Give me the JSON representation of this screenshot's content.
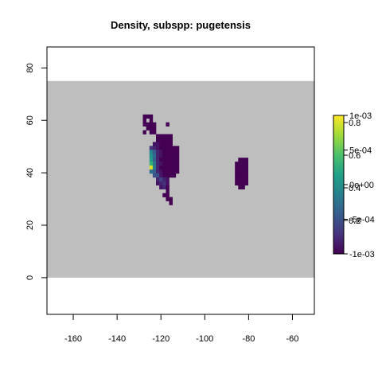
{
  "chart_data": {
    "type": "heatmap",
    "title": "Density, subspp: pugetensis",
    "xlabel": "",
    "ylabel": "",
    "xlim": [
      -172,
      -50
    ],
    "ylim": [
      -14,
      88
    ],
    "x_ticks": [
      -160,
      -140,
      -120,
      -100,
      -80,
      -60
    ],
    "y_ticks": [
      0,
      20,
      40,
      60,
      80
    ],
    "x_tick_labels": [
      "-160",
      "-140",
      "-120",
      "-100",
      "-80",
      "-60"
    ],
    "y_tick_labels": [
      "0",
      "20",
      "40",
      "60",
      "80"
    ],
    "cell_size": 1.5,
    "background_region": {
      "lon": [
        -172,
        -50
      ],
      "lat": [
        0,
        75
      ],
      "color": "#bebebe"
    },
    "colorbar": {
      "labels_right": [
        "1e-03",
        "5e-04",
        "0e+00",
        "-5e-04",
        "-1e-03"
      ],
      "labels_overlay": [
        "0.8",
        "0.6",
        "0.4",
        "0.2"
      ],
      "colors": [
        "#440154",
        "#46337e",
        "#365c8d",
        "#277f8e",
        "#1fa187",
        "#4ac16d",
        "#a0da39",
        "#fde725"
      ]
    },
    "cells": [
      {
        "x": -127.5,
        "y": 61.5,
        "v": 0.0
      },
      {
        "x": -126.0,
        "y": 61.5,
        "v": 0.0
      },
      {
        "x": -124.5,
        "y": 61.5,
        "v": 0.0
      },
      {
        "x": -127.5,
        "y": 60.0,
        "v": 0.0
      },
      {
        "x": -124.5,
        "y": 60.0,
        "v": 0.0
      },
      {
        "x": -127.5,
        "y": 58.5,
        "v": 0.0
      },
      {
        "x": -126.0,
        "y": 58.5,
        "v": 0.0
      },
      {
        "x": -124.5,
        "y": 58.5,
        "v": 0.0
      },
      {
        "x": -123.0,
        "y": 58.5,
        "v": 0.0
      },
      {
        "x": -117.0,
        "y": 58.5,
        "v": 0.0
      },
      {
        "x": -126.0,
        "y": 57.0,
        "v": 0.0
      },
      {
        "x": -124.5,
        "y": 57.0,
        "v": 0.0
      },
      {
        "x": -123.0,
        "y": 57.0,
        "v": 0.0
      },
      {
        "x": -127.5,
        "y": 55.5,
        "v": 0.0
      },
      {
        "x": -124.5,
        "y": 55.5,
        "v": 0.0
      },
      {
        "x": -123.0,
        "y": 55.5,
        "v": 0.0
      },
      {
        "x": -121.5,
        "y": 54.0,
        "v": 0.0
      },
      {
        "x": -120.0,
        "y": 54.0,
        "v": 0.0
      },
      {
        "x": -118.5,
        "y": 54.0,
        "v": 0.0
      },
      {
        "x": -117.0,
        "y": 54.0,
        "v": 0.0
      },
      {
        "x": -115.5,
        "y": 54.0,
        "v": 0.0
      },
      {
        "x": -121.5,
        "y": 52.5,
        "v": 0.0
      },
      {
        "x": -120.0,
        "y": 52.5,
        "v": 0.0
      },
      {
        "x": -118.5,
        "y": 52.5,
        "v": 0.0
      },
      {
        "x": -117.0,
        "y": 52.5,
        "v": 0.0
      },
      {
        "x": -115.5,
        "y": 52.5,
        "v": 0.0
      },
      {
        "x": -123.0,
        "y": 51.0,
        "v": 0.05
      },
      {
        "x": -121.5,
        "y": 51.0,
        "v": 0.05
      },
      {
        "x": -120.0,
        "y": 51.0,
        "v": 0.0
      },
      {
        "x": -118.5,
        "y": 51.0,
        "v": 0.0
      },
      {
        "x": -117.0,
        "y": 51.0,
        "v": 0.0
      },
      {
        "x": -115.5,
        "y": 51.0,
        "v": 0.0
      },
      {
        "x": -124.5,
        "y": 49.5,
        "v": 0.15
      },
      {
        "x": -123.0,
        "y": 49.5,
        "v": 0.1
      },
      {
        "x": -121.5,
        "y": 49.5,
        "v": 0.05
      },
      {
        "x": -120.0,
        "y": 49.5,
        "v": 0.0
      },
      {
        "x": -118.5,
        "y": 49.5,
        "v": 0.0
      },
      {
        "x": -117.0,
        "y": 49.5,
        "v": 0.0
      },
      {
        "x": -115.5,
        "y": 49.5,
        "v": 0.0
      },
      {
        "x": -114.0,
        "y": 49.5,
        "v": 0.0
      },
      {
        "x": -112.5,
        "y": 49.5,
        "v": 0.0
      },
      {
        "x": -124.5,
        "y": 48.0,
        "v": 0.45
      },
      {
        "x": -123.0,
        "y": 48.0,
        "v": 0.3
      },
      {
        "x": -121.5,
        "y": 48.0,
        "v": 0.1
      },
      {
        "x": -120.0,
        "y": 48.0,
        "v": 0.05
      },
      {
        "x": -118.5,
        "y": 48.0,
        "v": 0.0
      },
      {
        "x": -117.0,
        "y": 48.0,
        "v": 0.0
      },
      {
        "x": -115.5,
        "y": 48.0,
        "v": 0.0
      },
      {
        "x": -114.0,
        "y": 48.0,
        "v": 0.0
      },
      {
        "x": -112.5,
        "y": 48.0,
        "v": 0.0
      },
      {
        "x": -124.5,
        "y": 46.5,
        "v": 0.5
      },
      {
        "x": -123.0,
        "y": 46.5,
        "v": 0.35
      },
      {
        "x": -121.5,
        "y": 46.5,
        "v": 0.1
      },
      {
        "x": -120.0,
        "y": 46.5,
        "v": 0.05
      },
      {
        "x": -118.5,
        "y": 46.5,
        "v": 0.0
      },
      {
        "x": -117.0,
        "y": 46.5,
        "v": 0.0
      },
      {
        "x": -115.5,
        "y": 46.5,
        "v": 0.0
      },
      {
        "x": -114.0,
        "y": 46.5,
        "v": 0.0
      },
      {
        "x": -112.5,
        "y": 46.5,
        "v": 0.0
      },
      {
        "x": -124.5,
        "y": 45.0,
        "v": 0.55
      },
      {
        "x": -123.0,
        "y": 45.0,
        "v": 0.3
      },
      {
        "x": -121.5,
        "y": 45.0,
        "v": 0.1
      },
      {
        "x": -120.0,
        "y": 45.0,
        "v": 0.0
      },
      {
        "x": -118.5,
        "y": 45.0,
        "v": 0.0
      },
      {
        "x": -117.0,
        "y": 45.0,
        "v": 0.0
      },
      {
        "x": -115.5,
        "y": 45.0,
        "v": 0.0
      },
      {
        "x": -114.0,
        "y": 45.0,
        "v": 0.0
      },
      {
        "x": -112.5,
        "y": 45.0,
        "v": 0.0
      },
      {
        "x": -124.5,
        "y": 43.5,
        "v": 0.65
      },
      {
        "x": -123.0,
        "y": 43.5,
        "v": 0.4
      },
      {
        "x": -121.5,
        "y": 43.5,
        "v": 0.1
      },
      {
        "x": -120.0,
        "y": 43.5,
        "v": 0.05
      },
      {
        "x": -118.5,
        "y": 43.5,
        "v": 0.0
      },
      {
        "x": -117.0,
        "y": 43.5,
        "v": 0.0
      },
      {
        "x": -115.5,
        "y": 43.5,
        "v": 0.0
      },
      {
        "x": -114.0,
        "y": 43.5,
        "v": 0.0
      },
      {
        "x": -112.5,
        "y": 43.5,
        "v": 0.0
      },
      {
        "x": -124.5,
        "y": 42.0,
        "v": 0.95
      },
      {
        "x": -123.0,
        "y": 42.0,
        "v": 0.4
      },
      {
        "x": -121.5,
        "y": 42.0,
        "v": 0.1
      },
      {
        "x": -120.0,
        "y": 42.0,
        "v": 0.0
      },
      {
        "x": -118.5,
        "y": 42.0,
        "v": 0.0
      },
      {
        "x": -117.0,
        "y": 42.0,
        "v": 0.0
      },
      {
        "x": -115.5,
        "y": 42.0,
        "v": 0.0
      },
      {
        "x": -114.0,
        "y": 42.0,
        "v": 0.0
      },
      {
        "x": -112.5,
        "y": 42.0,
        "v": 0.0
      },
      {
        "x": -124.5,
        "y": 40.5,
        "v": 0.35
      },
      {
        "x": -123.0,
        "y": 40.5,
        "v": 0.3
      },
      {
        "x": -121.5,
        "y": 40.5,
        "v": 0.1
      },
      {
        "x": -120.0,
        "y": 40.5,
        "v": 0.05
      },
      {
        "x": -118.5,
        "y": 40.5,
        "v": 0.0
      },
      {
        "x": -117.0,
        "y": 40.5,
        "v": 0.0
      },
      {
        "x": -115.5,
        "y": 40.5,
        "v": 0.0
      },
      {
        "x": -114.0,
        "y": 40.5,
        "v": 0.0
      },
      {
        "x": -112.5,
        "y": 40.5,
        "v": 0.0
      },
      {
        "x": -123.0,
        "y": 39.0,
        "v": 0.25
      },
      {
        "x": -121.5,
        "y": 39.0,
        "v": 0.25
      },
      {
        "x": -120.0,
        "y": 39.0,
        "v": 0.05
      },
      {
        "x": -118.5,
        "y": 39.0,
        "v": 0.0
      },
      {
        "x": -117.0,
        "y": 39.0,
        "v": 0.0
      },
      {
        "x": -115.5,
        "y": 39.0,
        "v": 0.0
      },
      {
        "x": -114.0,
        "y": 39.0,
        "v": 0.0
      },
      {
        "x": -121.5,
        "y": 37.5,
        "v": 0.1
      },
      {
        "x": -120.0,
        "y": 37.5,
        "v": 0.2
      },
      {
        "x": -118.5,
        "y": 37.5,
        "v": 0.1
      },
      {
        "x": -117.0,
        "y": 37.5,
        "v": 0.05
      },
      {
        "x": -121.5,
        "y": 36.0,
        "v": 0.05
      },
      {
        "x": -120.0,
        "y": 36.0,
        "v": 0.1
      },
      {
        "x": -118.5,
        "y": 36.0,
        "v": 0.15
      },
      {
        "x": -117.0,
        "y": 36.0,
        "v": 0.05
      },
      {
        "x": -120.0,
        "y": 34.5,
        "v": 0.05
      },
      {
        "x": -118.5,
        "y": 34.5,
        "v": 0.1
      },
      {
        "x": -117.0,
        "y": 34.5,
        "v": 0.0
      },
      {
        "x": -117.0,
        "y": 33.0,
        "v": 0.0
      },
      {
        "x": -118.5,
        "y": 31.5,
        "v": 0.0
      },
      {
        "x": -117.0,
        "y": 31.5,
        "v": 0.0
      },
      {
        "x": -117.0,
        "y": 30.0,
        "v": 0.0
      },
      {
        "x": -115.5,
        "y": 30.0,
        "v": 0.0
      },
      {
        "x": -115.5,
        "y": 28.5,
        "v": 0.0
      },
      {
        "x": -84.0,
        "y": 45.0,
        "v": 0.0
      },
      {
        "x": -82.5,
        "y": 45.0,
        "v": 0.0
      },
      {
        "x": -81.0,
        "y": 45.0,
        "v": 0.0
      },
      {
        "x": -85.5,
        "y": 43.5,
        "v": 0.0
      },
      {
        "x": -84.0,
        "y": 43.5,
        "v": 0.0
      },
      {
        "x": -82.5,
        "y": 43.5,
        "v": 0.0
      },
      {
        "x": -81.0,
        "y": 43.5,
        "v": 0.0
      },
      {
        "x": -85.5,
        "y": 42.0,
        "v": 0.0
      },
      {
        "x": -84.0,
        "y": 42.0,
        "v": 0.0
      },
      {
        "x": -82.5,
        "y": 42.0,
        "v": 0.0
      },
      {
        "x": -81.0,
        "y": 42.0,
        "v": 0.0
      },
      {
        "x": -85.5,
        "y": 40.5,
        "v": 0.0
      },
      {
        "x": -84.0,
        "y": 40.5,
        "v": 0.0
      },
      {
        "x": -82.5,
        "y": 40.5,
        "v": 0.0
      },
      {
        "x": -81.0,
        "y": 40.5,
        "v": 0.0
      },
      {
        "x": -85.5,
        "y": 39.0,
        "v": 0.0
      },
      {
        "x": -84.0,
        "y": 39.0,
        "v": 0.0
      },
      {
        "x": -82.5,
        "y": 39.0,
        "v": 0.0
      },
      {
        "x": -81.0,
        "y": 39.0,
        "v": 0.0
      },
      {
        "x": -85.5,
        "y": 37.5,
        "v": 0.0
      },
      {
        "x": -84.0,
        "y": 37.5,
        "v": 0.0
      },
      {
        "x": -82.5,
        "y": 37.5,
        "v": 0.0
      },
      {
        "x": -81.0,
        "y": 37.5,
        "v": 0.0
      },
      {
        "x": -85.5,
        "y": 36.0,
        "v": 0.0
      },
      {
        "x": -84.0,
        "y": 36.0,
        "v": 0.0
      },
      {
        "x": -82.5,
        "y": 36.0,
        "v": 0.0
      },
      {
        "x": -81.0,
        "y": 36.0,
        "v": 0.0
      },
      {
        "x": -84.0,
        "y": 34.5,
        "v": 0.0
      },
      {
        "x": -82.5,
        "y": 34.5,
        "v": 0.0
      }
    ]
  }
}
